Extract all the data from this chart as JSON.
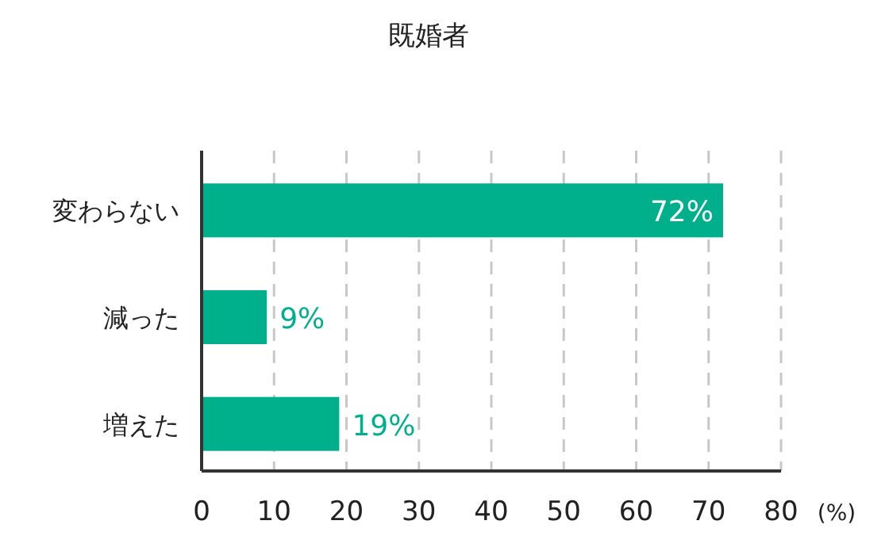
{
  "chart_data": {
    "type": "bar",
    "orientation": "horizontal",
    "title": "既婚者",
    "xlabel": "(%)",
    "categories": [
      "変わらない",
      "減った",
      "増えた"
    ],
    "values": [
      72,
      9,
      19
    ],
    "value_labels": [
      "72%",
      "9%",
      "19%"
    ],
    "color": "#00b08c",
    "xlim": [
      0,
      80
    ],
    "xticks": [
      0,
      10,
      20,
      30,
      40,
      50,
      60,
      70,
      80
    ],
    "grid": "x"
  }
}
